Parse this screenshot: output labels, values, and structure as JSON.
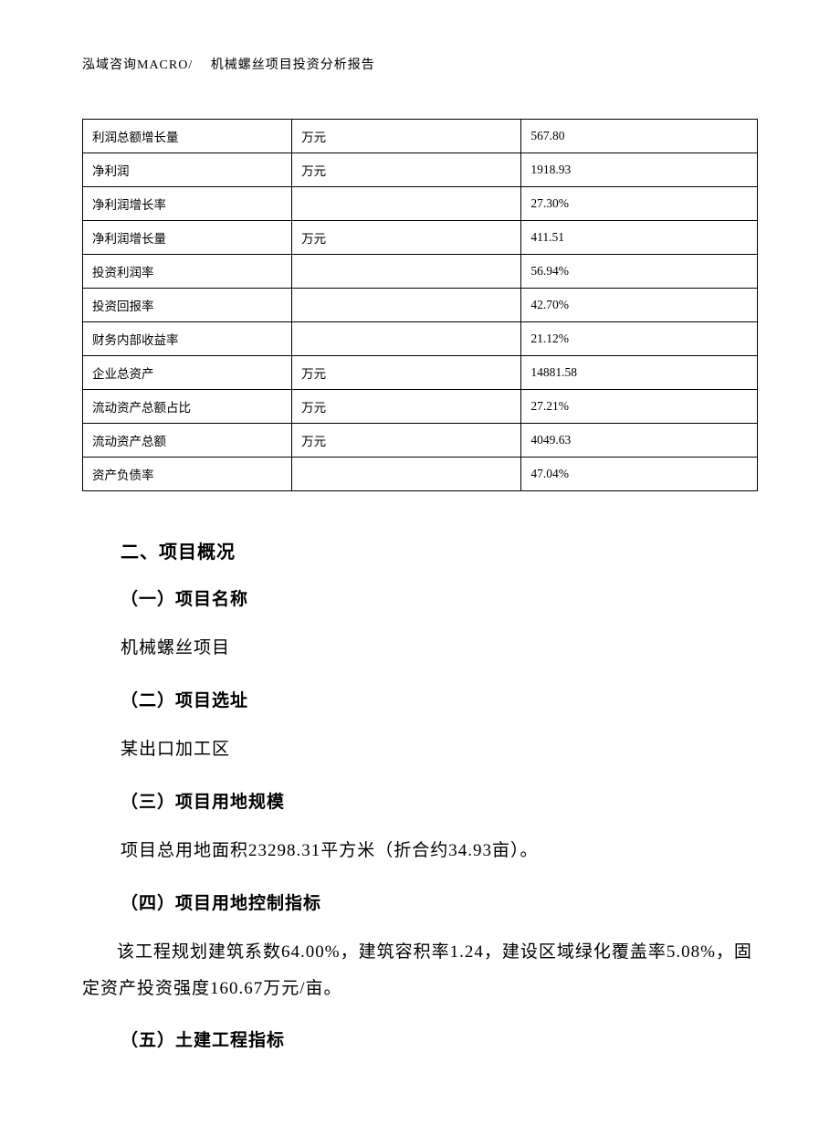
{
  "header": {
    "text": "泓域咨询MACRO/　 机械螺丝项目投资分析报告"
  },
  "table": {
    "columns": [
      "label",
      "unit",
      "value"
    ],
    "column_widths": [
      "31%",
      "34%",
      "35%"
    ],
    "border_color": "#000000",
    "font_size": 13.5,
    "cell_padding": "8px 10px",
    "background_color": "#ffffff",
    "rows": [
      {
        "label": "利润总额增长量",
        "unit": "万元",
        "value": "567.80"
      },
      {
        "label": "净利润",
        "unit": "万元",
        "value": "1918.93"
      },
      {
        "label": "净利润增长率",
        "unit": "",
        "value": "27.30%"
      },
      {
        "label": "净利润增长量",
        "unit": "万元",
        "value": "411.51"
      },
      {
        "label": "投资利润率",
        "unit": "",
        "value": "56.94%"
      },
      {
        "label": "投资回报率",
        "unit": "",
        "value": "42.70%"
      },
      {
        "label": "财务内部收益率",
        "unit": "",
        "value": "21.12%"
      },
      {
        "label": "企业总资产",
        "unit": "万元",
        "value": "14881.58"
      },
      {
        "label": "流动资产总额占比",
        "unit": "万元",
        "value": "27.21%"
      },
      {
        "label": "流动资产总额",
        "unit": "万元",
        "value": "4049.63"
      },
      {
        "label": "资产负债率",
        "unit": "",
        "value": "47.04%"
      }
    ]
  },
  "sections": {
    "main_title": "二、项目概况",
    "sub1": {
      "title": "（一）项目名称",
      "text": "机械螺丝项目"
    },
    "sub2": {
      "title": "（二）项目选址",
      "text": "某出口加工区"
    },
    "sub3": {
      "title": "（三）项目用地规模",
      "text": "项目总用地面积23298.31平方米（折合约34.93亩）。"
    },
    "sub4": {
      "title": "（四）项目用地控制指标",
      "text": "该工程规划建筑系数64.00%，建筑容积率1.24，建设区域绿化覆盖率5.08%，固定资产投资强度160.67万元/亩。"
    },
    "sub5": {
      "title": "（五）土建工程指标"
    }
  },
  "typography": {
    "body_font": "SimSun",
    "heading_font": "SimHei",
    "body_fontsize": 19,
    "heading_fontsize": 20,
    "subheading_fontsize": 19,
    "header_fontsize": 14,
    "line_height": 2.1,
    "text_color": "#000000",
    "background_color": "#ffffff"
  }
}
